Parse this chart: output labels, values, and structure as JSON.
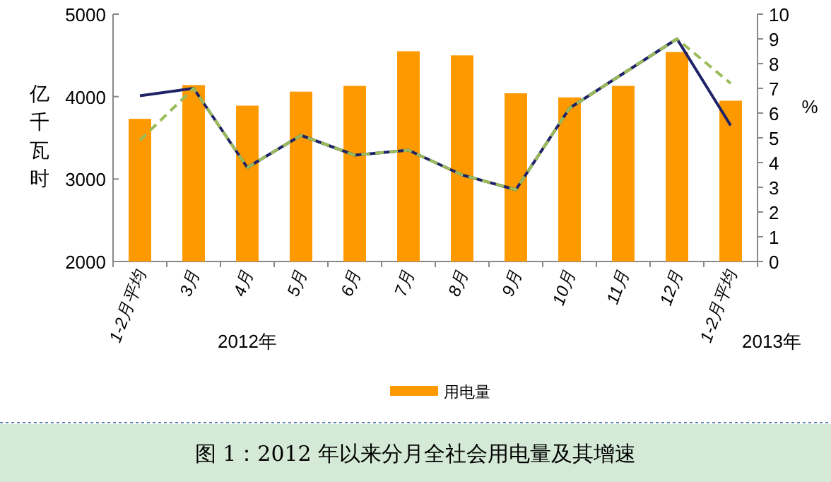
{
  "chart_data": {
    "type": "bar",
    "ylabel": "亿千瓦时",
    "y2label": "%",
    "categories": [
      "1-2月平均",
      "3月",
      "4月",
      "5月",
      "6月",
      "7月",
      "8月",
      "9月",
      "10月",
      "11月",
      "12月",
      "1-2月平均"
    ],
    "series": [
      {
        "name": "用电量",
        "color": "#ff9900",
        "values": [
          3730,
          4140,
          3890,
          4060,
          4130,
          4550,
          4500,
          4040,
          3990,
          4130,
          4540,
          3950
        ]
      },
      {
        "type": "line",
        "axis": "y2",
        "color": "#1f2266",
        "line_style": "solid",
        "values": [
          6.7,
          7.0,
          3.8,
          5.1,
          4.3,
          4.5,
          3.5,
          2.9,
          6.2,
          7.6,
          9.0,
          5.5
        ]
      },
      {
        "type": "line",
        "axis": "y2",
        "color": "#9bbb59",
        "line_style": "dashed",
        "values": [
          4.9,
          7.0,
          3.8,
          5.1,
          4.3,
          4.5,
          3.5,
          2.9,
          6.2,
          7.6,
          9.0,
          7.2
        ]
      }
    ],
    "ylim": [
      2000,
      5000
    ],
    "yticks": [
      2000,
      3000,
      4000,
      5000
    ],
    "y2lim": [
      0,
      10
    ],
    "y2ticks": [
      0,
      1,
      2,
      3,
      4,
      5,
      6,
      7,
      8,
      9,
      10
    ],
    "marker": "none",
    "grid": false,
    "legend": "bottom",
    "annotations": [
      "2012年",
      "2013年",
      "图 1：2012 年以来分月全社会用电量及其增速"
    ]
  }
}
